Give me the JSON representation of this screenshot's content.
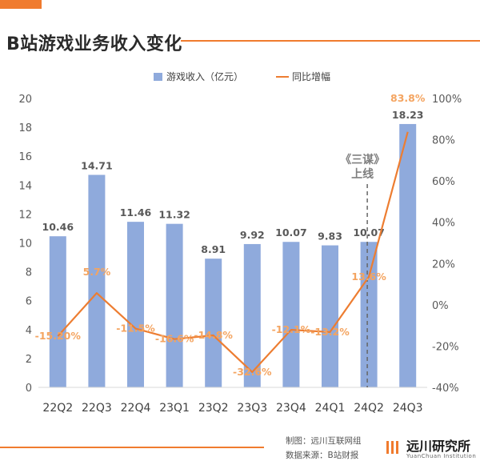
{
  "title": "B站游戏业务收入变化",
  "footer": {
    "credit_line1": "制图：远川互联网组",
    "credit_line2": "数据来源：B站财报",
    "brand_name": "远川研究所",
    "brand_sub": "YuanChuan Institution"
  },
  "colors": {
    "bar": "#8faadc",
    "line": "#ed7d31",
    "line_label": "#f4a460",
    "bar_label": "#595959",
    "accent": "#f07b2e",
    "axis_text": "#595959"
  },
  "chart_data": {
    "type": "bar",
    "categories": [
      "22Q2",
      "22Q3",
      "22Q4",
      "23Q1",
      "23Q2",
      "23Q3",
      "23Q4",
      "24Q1",
      "24Q2",
      "24Q3"
    ],
    "series": [
      {
        "name": "游戏收入（亿元）",
        "type": "bar",
        "axis": "left",
        "values": [
          10.46,
          14.71,
          11.46,
          11.32,
          8.91,
          9.92,
          10.07,
          9.83,
          10.07,
          18.23
        ],
        "labels": [
          "10.46",
          "14.71",
          "11.46",
          "11.32",
          "8.91",
          "9.92",
          "10.07",
          "9.83",
          "10.07",
          "18.23"
        ]
      },
      {
        "name": "同比增幅",
        "type": "line",
        "axis": "right",
        "values": [
          -15.2,
          5.7,
          -11.5,
          -16.6,
          -14.8,
          -32.6,
          -12.1,
          -13.2,
          13.6,
          83.8
        ],
        "labels": [
          "-15.20%",
          "5.7%",
          "-11.5%",
          "-16.6%",
          "-14.8%",
          "-32.6%",
          "-12.1%",
          "-13.2%",
          "13.6%",
          "83.8%"
        ]
      }
    ],
    "y_left": {
      "ylim": [
        0,
        20
      ],
      "ticks": [
        "0",
        "2",
        "4",
        "6",
        "8",
        "10",
        "12",
        "14",
        "16",
        "18",
        "20"
      ]
    },
    "y_right": {
      "ylim": [
        -40,
        100
      ],
      "ticks": [
        "-40%",
        "-20%",
        "0%",
        "20%",
        "40%",
        "60%",
        "80%",
        "100%"
      ]
    },
    "annotation": {
      "text_line1": "《三谋》",
      "text_line2": "上线",
      "category": "24Q2"
    },
    "legend": {
      "position": "top"
    },
    "grid": false
  }
}
